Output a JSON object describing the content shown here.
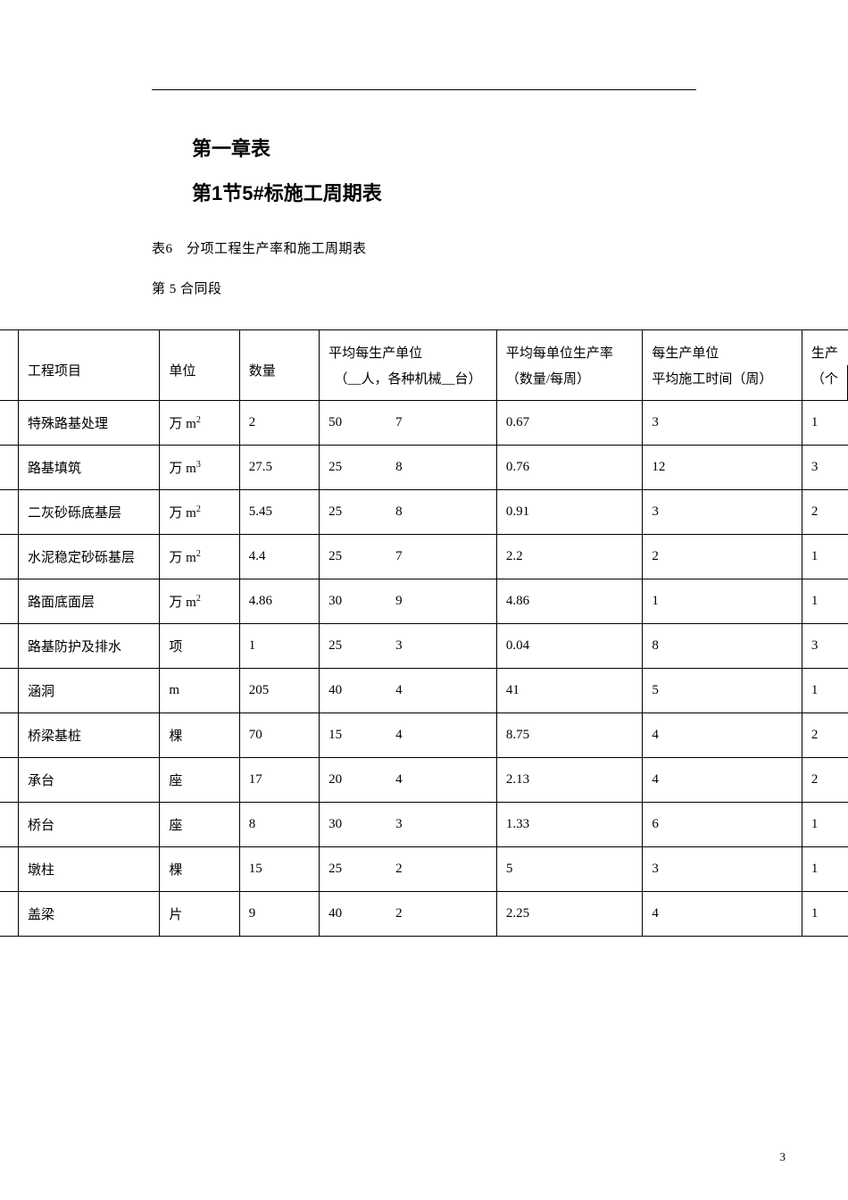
{
  "hr": "",
  "heading1": "第一章表",
  "heading2": "第1节5#标施工周期表",
  "caption1": "表6　分项工程生产率和施工周期表",
  "caption2": "第 5 合同段",
  "header": {
    "project": "工程项目",
    "unit": "单位",
    "qty": "数量",
    "prodUnit_line1": "平均每生产单位",
    "prodUnit_line2": "（__人，各种机械__台）",
    "rate_line1": "平均每单位生产率",
    "rate_line2": "（数量/每周）",
    "eachUnit_line1": "每生产单位",
    "eachUnit_line2": "平均施工时间（周）",
    "last_line1": "生产",
    "last_line2": "（个"
  },
  "rows": [
    {
      "name": "特殊路基处理",
      "unit_pre": "万 m",
      "unit_sup": "2",
      "qty": "2",
      "p1": "50",
      "p2": "7",
      "rate": "0.67",
      "time": "3",
      "last": "1"
    },
    {
      "name": "路基填筑",
      "unit_pre": "万 m",
      "unit_sup": "3",
      "qty": "27.5",
      "p1": "25",
      "p2": "8",
      "rate": "0.76",
      "time": "12",
      "last": "3"
    },
    {
      "name": "二灰砂砾底基层",
      "unit_pre": "万 m",
      "unit_sup": "2",
      "qty": "5.45",
      "p1": "25",
      "p2": "8",
      "rate": "0.91",
      "time": "3",
      "last": "2"
    },
    {
      "name": "水泥稳定砂砾基层",
      "unit_pre": "万 m",
      "unit_sup": "2",
      "qty": "4.4",
      "p1": "25",
      "p2": "7",
      "rate": "2.2",
      "time": "2",
      "last": "1"
    },
    {
      "name": "路面底面层",
      "unit_pre": "万 m",
      "unit_sup": "2",
      "qty": "4.86",
      "p1": "30",
      "p2": "9",
      "rate": "4.86",
      "time": "1",
      "last": "1"
    },
    {
      "name": "路基防护及排水",
      "unit_pre": "项",
      "unit_sup": "",
      "qty": "1",
      "p1": "25",
      "p2": "3",
      "rate": "0.04",
      "time": "8",
      "last": "3"
    },
    {
      "name": "涵洞",
      "unit_pre": "m",
      "unit_sup": "",
      "qty": "205",
      "p1": "40",
      "p2": "4",
      "rate": "41",
      "time": "5",
      "last": "1"
    },
    {
      "name": "桥梁基桩",
      "unit_pre": "棵",
      "unit_sup": "",
      "qty": "70",
      "p1": "15",
      "p2": "4",
      "rate": "8.75",
      "time": "4",
      "last": "2"
    },
    {
      "name": "承台",
      "unit_pre": "座",
      "unit_sup": "",
      "qty": "17",
      "p1": "20",
      "p2": "4",
      "rate": "2.13",
      "time": "4",
      "last": "2"
    },
    {
      "name": "桥台",
      "unit_pre": "座",
      "unit_sup": "",
      "qty": "8",
      "p1": "30",
      "p2": "3",
      "rate": "1.33",
      "time": "6",
      "last": "1"
    },
    {
      "name": "墩柱",
      "unit_pre": "棵",
      "unit_sup": "",
      "qty": "15",
      "p1": "25",
      "p2": "2",
      "rate": "5",
      "time": "3",
      "last": "1"
    },
    {
      "name": "盖梁",
      "unit_pre": "片",
      "unit_sup": "",
      "qty": "9",
      "p1": "40",
      "p2": "2",
      "rate": "2.25",
      "time": "4",
      "last": "1"
    }
  ],
  "pageNumber": "3"
}
